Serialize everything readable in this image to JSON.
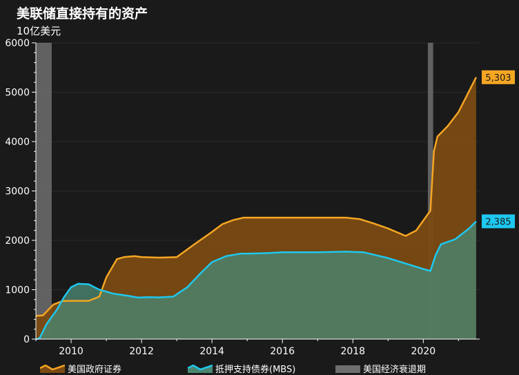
{
  "title": "美联储直接持有的资产",
  "subtitle": "10亿美元",
  "colors": {
    "background": "#1a1a1a",
    "treasury_line": "#f5a623",
    "treasury_fill": "#7a4a12",
    "mbs_line": "#1ec8f0",
    "mbs_fill": "#4a8670",
    "recession": "#6e6e6e",
    "axis": "#ffffff"
  },
  "chart_data": {
    "type": "area",
    "title": "美联储直接持有的资产",
    "ylabel": "10亿美元",
    "xlim": [
      2009.0,
      2021.6
    ],
    "ylim": [
      0,
      6000
    ],
    "y_ticks": [
      0,
      1000,
      2000,
      3000,
      4000,
      5000,
      6000
    ],
    "x_ticks": [
      2010,
      2012,
      2014,
      2016,
      2018,
      2020
    ],
    "recessions": [
      [
        2008.95,
        2009.45
      ],
      [
        2020.13,
        2020.28
      ]
    ],
    "series": [
      {
        "name": "美国政府证券",
        "x": [
          2009.0,
          2009.2,
          2009.5,
          2009.75,
          2010.0,
          2010.5,
          2010.8,
          2011.0,
          2011.3,
          2011.5,
          2011.8,
          2012.0,
          2012.5,
          2013.0,
          2013.5,
          2014.0,
          2014.3,
          2014.6,
          2014.9,
          2015.5,
          2016.0,
          2017.0,
          2017.8,
          2018.2,
          2018.6,
          2019.0,
          2019.5,
          2019.8,
          2020.0,
          2020.2,
          2020.3,
          2020.4,
          2020.7,
          2021.0,
          2021.5
        ],
        "values": [
          470,
          480,
          700,
          770,
          775,
          775,
          860,
          1250,
          1620,
          1660,
          1680,
          1660,
          1650,
          1660,
          1920,
          2170,
          2330,
          2410,
          2460,
          2460,
          2460,
          2460,
          2460,
          2430,
          2340,
          2240,
          2090,
          2200,
          2400,
          2600,
          3800,
          4100,
          4320,
          4600,
          5303
        ]
      },
      {
        "name": "抵押支持债券(MBS)",
        "x": [
          2009.0,
          2009.1,
          2009.3,
          2009.6,
          2009.8,
          2010.0,
          2010.2,
          2010.5,
          2010.8,
          2011.2,
          2011.6,
          2011.9,
          2012.2,
          2012.5,
          2012.9,
          2013.3,
          2013.7,
          2014.0,
          2014.4,
          2014.8,
          2015.0,
          2015.5,
          2016.0,
          2017.0,
          2017.8,
          2018.3,
          2019.0,
          2019.5,
          2020.0,
          2020.2,
          2020.35,
          2020.5,
          2020.9,
          2021.3,
          2021.5
        ],
        "values": [
          0,
          10,
          300,
          600,
          850,
          1050,
          1120,
          1110,
          1000,
          920,
          880,
          840,
          850,
          845,
          860,
          1050,
          1350,
          1560,
          1680,
          1730,
          1730,
          1740,
          1760,
          1760,
          1770,
          1760,
          1640,
          1530,
          1420,
          1380,
          1700,
          1920,
          2020,
          2240,
          2385
        ]
      }
    ],
    "end_labels": [
      "5,303",
      "2,385"
    ],
    "legend": [
      "美国政府证券",
      "抵押支持债券(MBS)",
      "美国经济衰退期"
    ],
    "legend_position": "bottom"
  }
}
